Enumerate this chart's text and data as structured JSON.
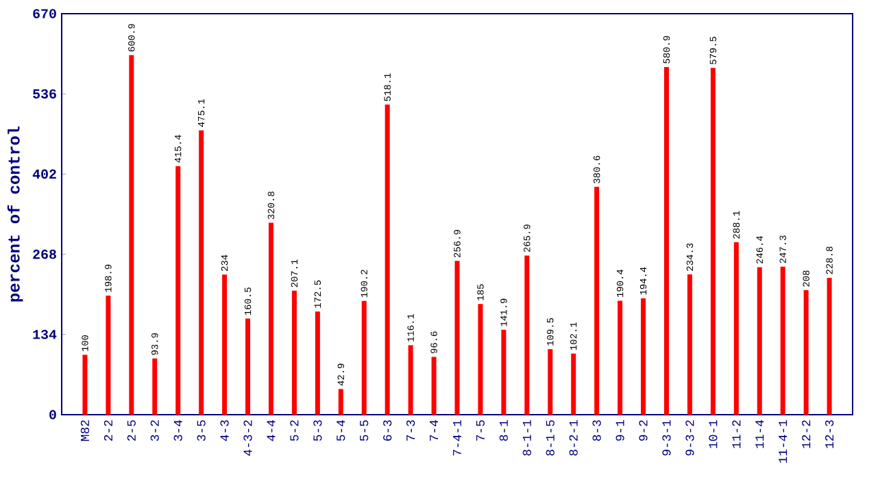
{
  "chart_data": {
    "type": "bar",
    "ylabel": "percent of control",
    "categories": [
      "M82",
      "2-2",
      "2-5",
      "3-2",
      "3-4",
      "3-5",
      "4-3",
      "4-3-2",
      "4-4",
      "5-2",
      "5-3",
      "5-4",
      "5-5",
      "6-3",
      "7-3",
      "7-4",
      "7-4-1",
      "7-5",
      "8-1",
      "8-1-1",
      "8-1-5",
      "8-2-1",
      "8-3",
      "9-1",
      "9-2",
      "9-3-1",
      "9-3-2",
      "10-1",
      "11-2",
      "11-4",
      "11-4-1",
      "12-2",
      "12-3"
    ],
    "values": [
      100,
      198.9,
      600.9,
      93.9,
      415.4,
      475.1,
      234,
      160.5,
      320.8,
      207.1,
      172.5,
      42.9,
      190.2,
      518.1,
      116.1,
      96.6,
      256.9,
      185,
      141.9,
      265.9,
      109.5,
      102.1,
      380.6,
      190.4,
      194.4,
      580.9,
      234.3,
      579.5,
      288.1,
      246.4,
      247.3,
      208,
      228.8
    ],
    "color": "#ff0000",
    "ylim": [
      0,
      670
    ],
    "yticks": [
      0,
      134,
      268,
      402,
      536,
      670
    ],
    "data_labels": true
  }
}
